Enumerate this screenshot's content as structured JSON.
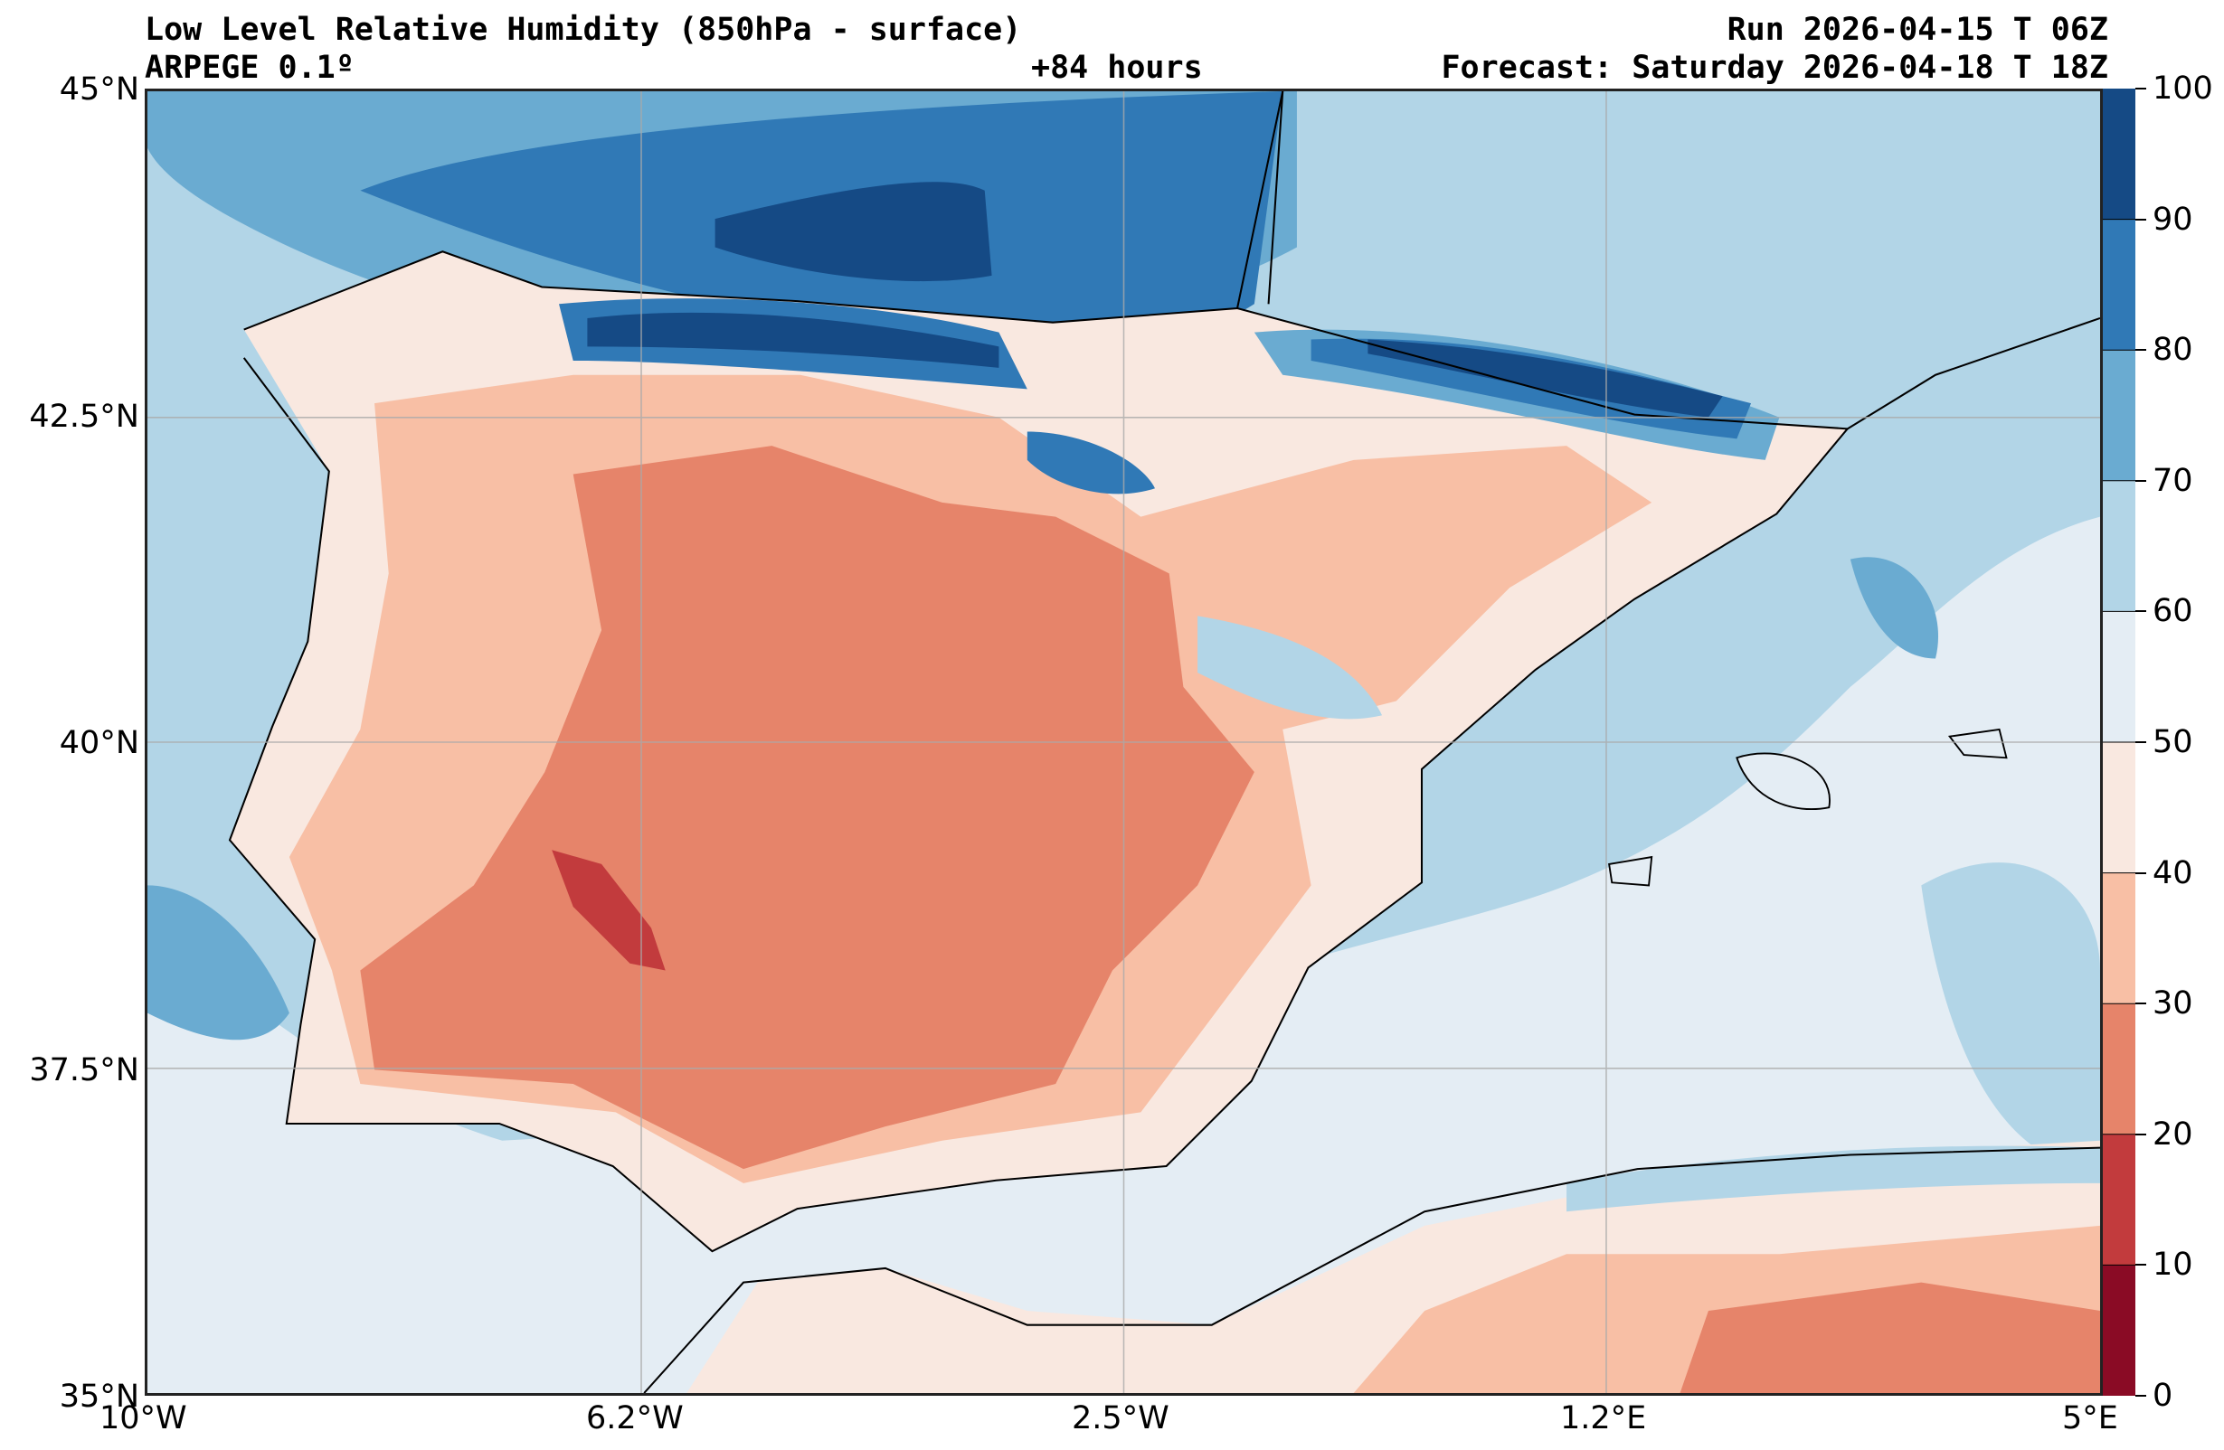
{
  "header": {
    "title": "Low Level Relative Humidity (850hPa - surface)",
    "model": "ARPEGE 0.1º",
    "run": "Run 2026-04-15 T 06Z",
    "lead": "+84 hours",
    "forecast": "Forecast: Saturday 2026-04-18 T 18Z"
  },
  "axes": {
    "lon_ticks": [
      "10°W",
      "6.2°W",
      "2.5°W",
      "1.2°E",
      "5°E"
    ],
    "lat_ticks": [
      "45°N",
      "42.5°N",
      "40°N",
      "37.5°N",
      "35°N"
    ]
  },
  "colorbar": {
    "levels": [
      "100",
      "90",
      "80",
      "70",
      "60",
      "50",
      "40",
      "30",
      "20",
      "10",
      "0"
    ],
    "colors": [
      "#154a85",
      "#3079b6",
      "#6aabd1",
      "#b2d5e7",
      "#e4edf4",
      "#f9e8e0",
      "#f8bfa5",
      "#e6846a",
      "#c23b3d",
      "#8a0b25"
    ]
  }
}
